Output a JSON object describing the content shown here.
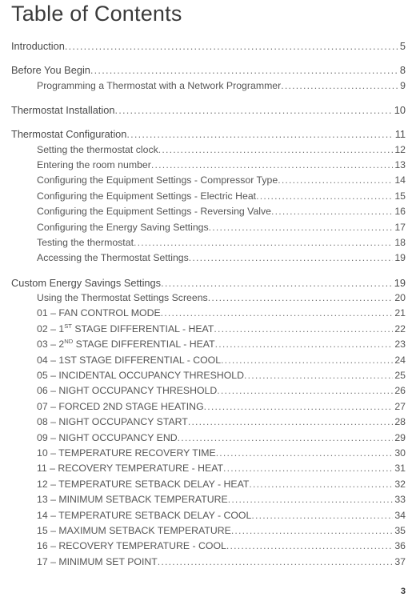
{
  "title": "Table of Contents",
  "footer_page": "3",
  "toc": [
    {
      "level": 1,
      "label": "Introduction",
      "page": "5"
    },
    {
      "level": 1,
      "label": "Before You Begin",
      "page": "8"
    },
    {
      "level": 2,
      "label": "Programming a Thermostat with a Network Programmer",
      "page": "9"
    },
    {
      "level": 1,
      "label": "Thermostat Installation",
      "page": "10"
    },
    {
      "level": 1,
      "label": "Thermostat Configuration",
      "page": "11"
    },
    {
      "level": 2,
      "label": "Setting the thermostat clock",
      "page": "12"
    },
    {
      "level": 2,
      "label": "Entering the room number",
      "page": "13"
    },
    {
      "level": 2,
      "label": "Configuring the Equipment Settings - Compressor Type",
      "page": "14"
    },
    {
      "level": 2,
      "label": "Configuring the Equipment Settings - Electric Heat",
      "page": "15"
    },
    {
      "level": 2,
      "label": "Configuring the Equipment Settings - Reversing Valve",
      "page": "16"
    },
    {
      "level": 2,
      "label": "Configuring the Energy Saving Settings ",
      "page": "17"
    },
    {
      "level": 2,
      "label": "Testing the thermostat",
      "page": "18"
    },
    {
      "level": 2,
      "label": "Accessing the Thermostat Settings",
      "page": "19"
    },
    {
      "level": 1,
      "label": "Custom Energy Savings Settings",
      "page": "19"
    },
    {
      "level": 2,
      "label": "Using the Thermostat Settings Screens",
      "page": "20"
    },
    {
      "level": 2,
      "label": "01 – FAN CONTROL MODE",
      "page": "21"
    },
    {
      "level": 2,
      "label_html": "02 – 1<sup>ST</sup> STAGE DIFFERENTIAL - HEAT",
      "page": "22"
    },
    {
      "level": 2,
      "label_html": "03 – 2<sup>ND</sup> STAGE DIFFERENTIAL - HEAT",
      "page": "23"
    },
    {
      "level": 2,
      "label": "04 – 1ST STAGE DIFFERENTIAL - COOL",
      "page": "24"
    },
    {
      "level": 2,
      "label": "05 – INCIDENTAL OCCUPANCY THRESHOLD",
      "page": "25"
    },
    {
      "level": 2,
      "label": "06 – NIGHT OCCUPANCY THRESHOLD",
      "page": "26"
    },
    {
      "level": 2,
      "label": "07 – FORCED 2ND STAGE HEATING",
      "page": "27"
    },
    {
      "level": 2,
      "label": "08 – NIGHT OCCUPANCY START",
      "page": "28"
    },
    {
      "level": 2,
      "label": "09 – NIGHT OCCUPANCY END",
      "page": "29"
    },
    {
      "level": 2,
      "label": "10 – TEMPERATURE RECOVERY TIME",
      "page": "30"
    },
    {
      "level": 2,
      "label": "11 – RECOVERY TEMPERATURE - HEAT",
      "page": "31"
    },
    {
      "level": 2,
      "label": "12 – TEMPERATURE SETBACK DELAY - HEAT",
      "page": "32"
    },
    {
      "level": 2,
      "label": "13 – MINIMUM SETBACK TEMPERATURE ",
      "page": "33"
    },
    {
      "level": 2,
      "label": "14 – TEMPERATURE SETBACK DELAY - COOL",
      "page": "34"
    },
    {
      "level": 2,
      "label": "15 – MAXIMUM SETBACK TEMPERATURE",
      "page": "35"
    },
    {
      "level": 2,
      "label": "16 – RECOVERY TEMPERATURE - COOL",
      "page": "36"
    },
    {
      "level": 2,
      "label": "17 – MINIMUM SET POINT",
      "page": "37"
    }
  ]
}
